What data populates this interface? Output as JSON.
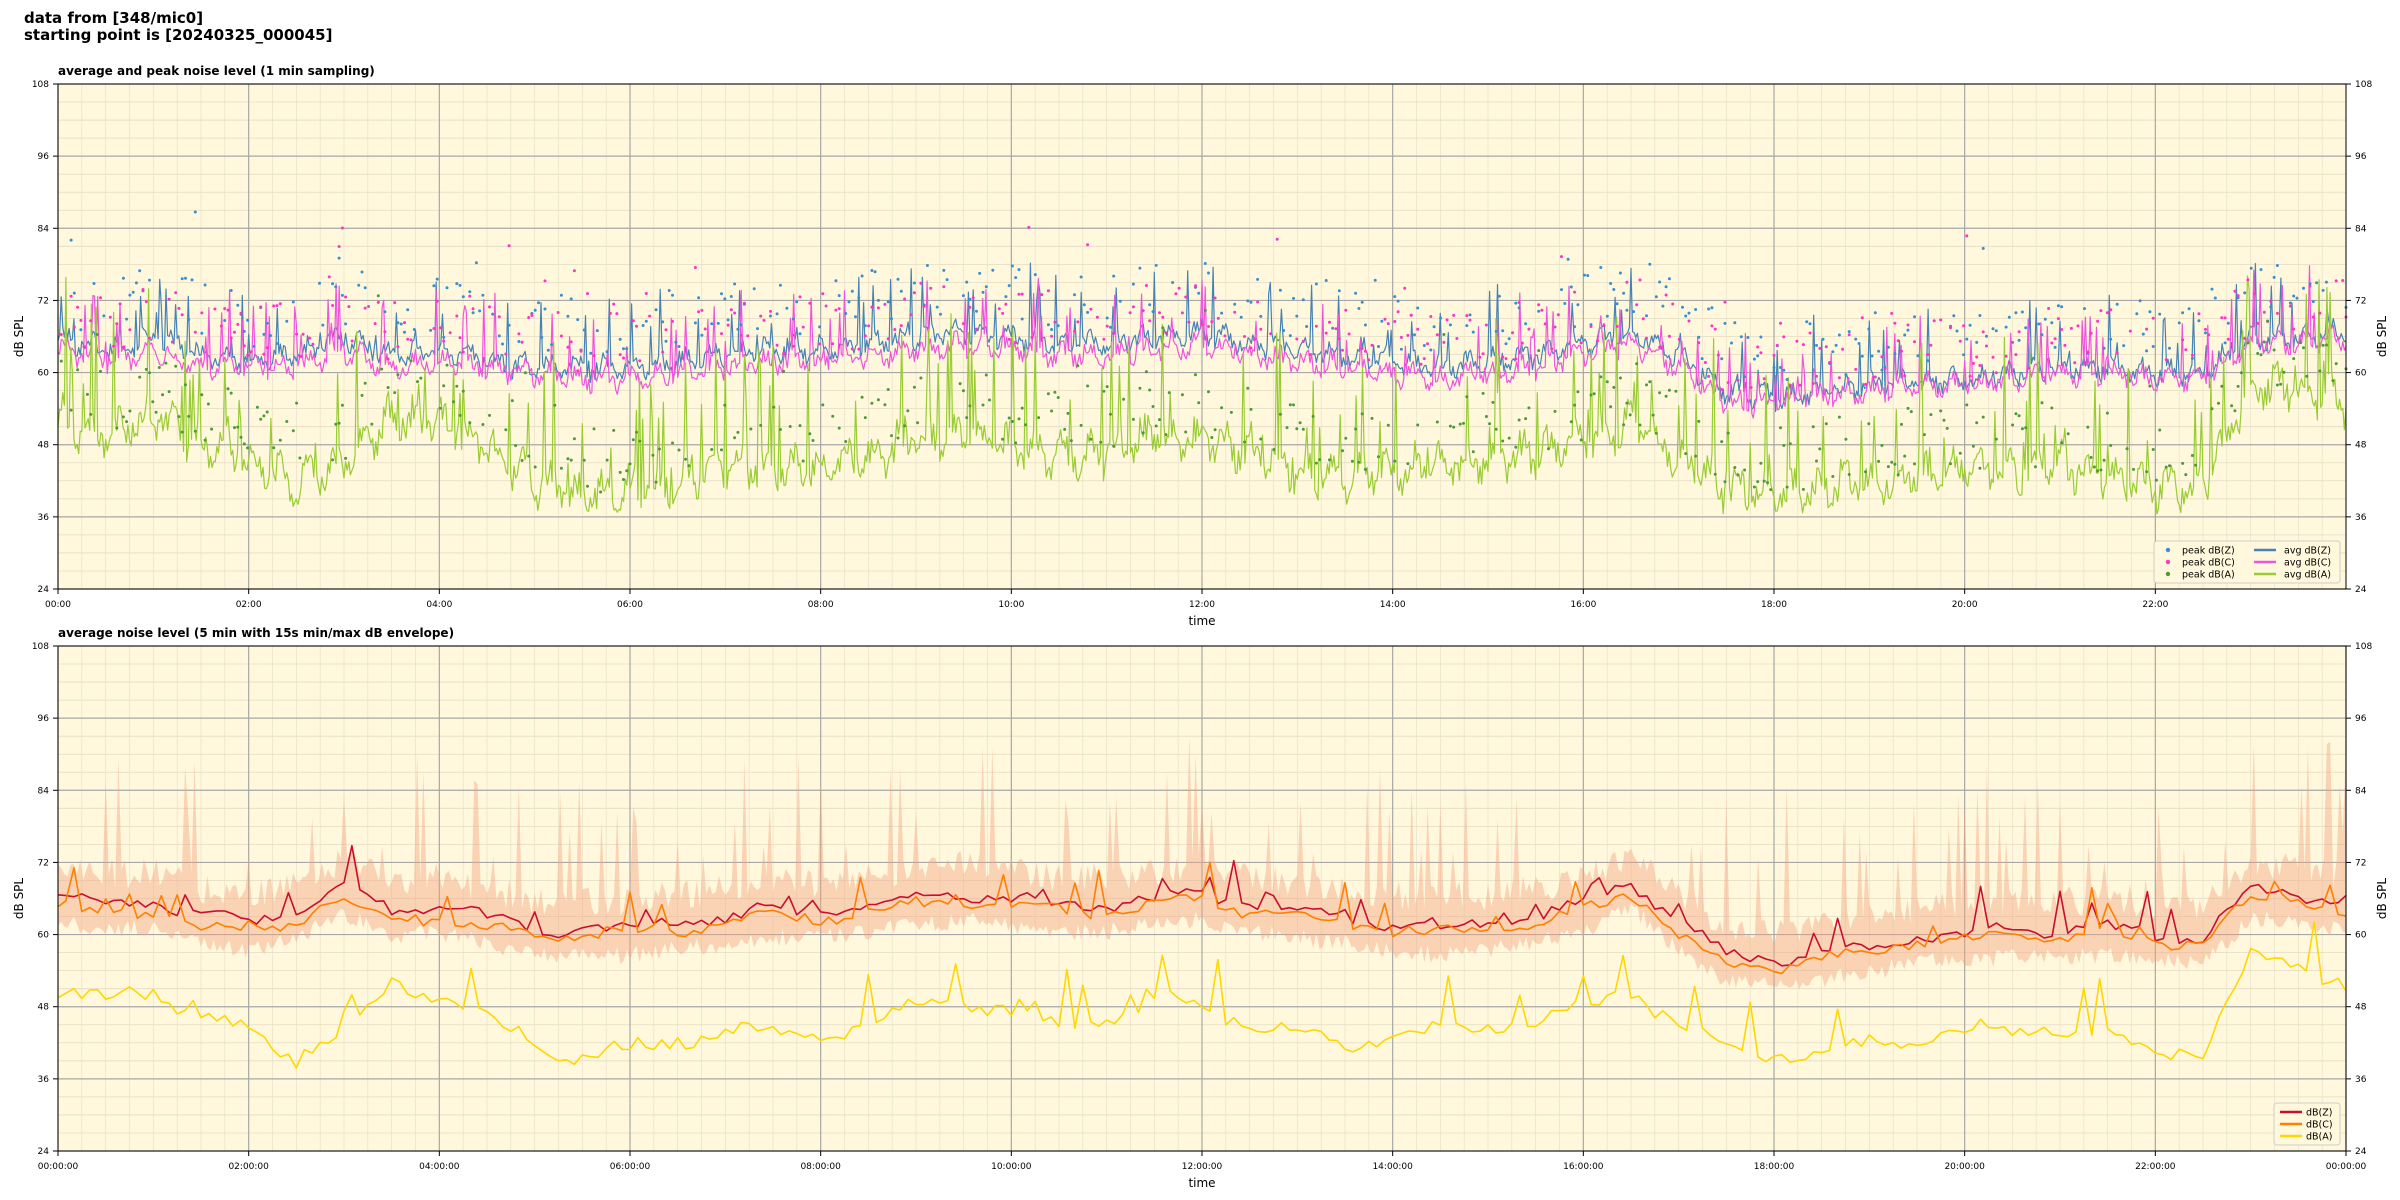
{
  "figure": {
    "title_line1": "data from [348/mic0]",
    "title_line2": "starting point is [20240325_000045]"
  },
  "colors": {
    "panel_bg": "#fff8dc",
    "avgZ": "#4682b4",
    "avgC": "#ee55dd",
    "avgA": "#99cc33",
    "peakZ": "#3a8fd0",
    "peakC": "#ff33cc",
    "peakA": "#4c9a3a",
    "dBZ": "#c8102e",
    "dBC": "#ff8000",
    "dBA": "#ffd700",
    "envelope": "#f4a582"
  },
  "chart_data": [
    {
      "type": "line",
      "title": "average and peak noise level (1 min sampling)",
      "xlabel": "time",
      "ylabel": "dB SPL",
      "ylabel_right": "dB SPL",
      "xlim_hours": [
        0,
        24
      ],
      "ylim": [
        24,
        108
      ],
      "yticks": [
        24,
        36,
        48,
        60,
        72,
        84,
        96,
        108
      ],
      "xtick_labels": [
        "00:00",
        "02:00",
        "04:00",
        "06:00",
        "08:00",
        "10:00",
        "12:00",
        "14:00",
        "16:00",
        "18:00",
        "20:00",
        "22:00"
      ],
      "grid": true,
      "legend_position": "lower-right",
      "x_hours": [
        0,
        0.5,
        1,
        1.5,
        2,
        2.5,
        3,
        3.5,
        4,
        4.5,
        5,
        5.5,
        6,
        6.5,
        7,
        7.5,
        8,
        8.5,
        9,
        9.5,
        10,
        10.5,
        11,
        11.5,
        12,
        12.5,
        13,
        13.5,
        14,
        14.5,
        15,
        15.5,
        16,
        16.5,
        17,
        17.5,
        18,
        18.5,
        19,
        19.5,
        20,
        20.5,
        21,
        21.5,
        22,
        22.5,
        23,
        23.5,
        24
      ],
      "legend": [
        {
          "label": "peak dB(Z)",
          "kind": "dot",
          "color_key": "peakZ"
        },
        {
          "label": "peak dB(C)",
          "kind": "dot",
          "color_key": "peakC"
        },
        {
          "label": "peak dB(A)",
          "kind": "dot",
          "color_key": "peakA"
        },
        {
          "label": "avg dB(Z)",
          "kind": "line",
          "color_key": "avgZ"
        },
        {
          "label": "avg dB(C)",
          "kind": "line",
          "color_key": "avgC"
        },
        {
          "label": "avg dB(A)",
          "kind": "line",
          "color_key": "avgA"
        }
      ],
      "series": [
        {
          "name": "avg dB(Z)",
          "color_key": "avgZ",
          "amp": 5,
          "values": [
            66,
            64,
            66,
            63,
            62,
            63,
            66,
            63,
            64,
            62,
            61,
            61,
            61,
            62,
            63,
            64,
            64,
            65,
            66,
            67,
            66,
            65,
            65,
            66,
            67,
            65,
            64,
            63,
            62,
            61,
            62,
            63,
            65,
            67,
            63,
            57,
            56,
            57,
            58,
            59,
            59,
            60,
            61,
            61,
            60,
            60,
            66,
            66,
            67
          ]
        },
        {
          "name": "avg dB(C)",
          "color_key": "avgC",
          "amp": 5,
          "values": [
            64,
            62,
            64,
            61,
            61,
            61,
            64,
            61,
            62,
            61,
            60,
            59,
            59,
            60,
            61,
            62,
            62,
            63,
            64,
            65,
            64,
            63,
            63,
            64,
            65,
            63,
            62,
            61,
            60,
            59,
            60,
            61,
            63,
            65,
            61,
            55,
            55,
            56,
            57,
            58,
            58,
            59,
            60,
            60,
            59,
            59,
            65,
            65,
            66
          ]
        },
        {
          "name": "avg dB(A)",
          "color_key": "avgA",
          "amp": 9,
          "values": [
            52,
            50,
            53,
            48,
            46,
            42,
            45,
            53,
            52,
            48,
            42,
            40,
            41,
            42,
            45,
            44,
            45,
            46,
            49,
            50,
            48,
            46,
            47,
            50,
            49,
            47,
            44,
            43,
            44,
            45,
            46,
            47,
            49,
            52,
            46,
            41,
            40,
            41,
            42,
            43,
            44,
            44,
            45,
            43,
            41,
            41,
            58,
            58,
            55
          ]
        },
        {
          "name": "peak dB(Z)",
          "color_key": "peakZ",
          "kind": "dots",
          "offset": 5,
          "amp": 10,
          "values": [
            66,
            64,
            66,
            63,
            62,
            63,
            66,
            63,
            64,
            62,
            61,
            61,
            61,
            62,
            63,
            64,
            64,
            65,
            66,
            67,
            66,
            65,
            65,
            66,
            67,
            65,
            64,
            63,
            62,
            61,
            62,
            63,
            65,
            67,
            63,
            57,
            56,
            57,
            58,
            59,
            59,
            60,
            61,
            61,
            60,
            60,
            66,
            66,
            67
          ]
        },
        {
          "name": "peak dB(C)",
          "color_key": "peakC",
          "kind": "dots",
          "offset": 4,
          "amp": 10,
          "values": [
            64,
            62,
            64,
            61,
            61,
            61,
            64,
            61,
            62,
            61,
            60,
            59,
            59,
            60,
            61,
            62,
            62,
            63,
            64,
            65,
            64,
            63,
            63,
            64,
            65,
            63,
            62,
            61,
            60,
            59,
            60,
            61,
            63,
            65,
            61,
            55,
            55,
            56,
            57,
            58,
            58,
            59,
            60,
            60,
            59,
            59,
            65,
            65,
            66
          ]
        },
        {
          "name": "peak dB(A)",
          "color_key": "peakA",
          "kind": "dots",
          "offset": 3,
          "amp": 11,
          "values": [
            52,
            50,
            53,
            48,
            46,
            42,
            45,
            53,
            52,
            48,
            42,
            40,
            41,
            42,
            45,
            44,
            45,
            46,
            49,
            50,
            48,
            46,
            47,
            50,
            49,
            47,
            44,
            43,
            44,
            45,
            46,
            47,
            49,
            52,
            46,
            41,
            40,
            41,
            42,
            43,
            44,
            44,
            45,
            43,
            41,
            41,
            58,
            58,
            55
          ]
        }
      ]
    },
    {
      "type": "line",
      "title": "average noise level (5 min with 15s min/max dB envelope)",
      "xlabel": "time",
      "ylabel": "dB SPL",
      "ylabel_right": "dB SPL",
      "xlim_hours": [
        0,
        24
      ],
      "ylim": [
        24,
        108
      ],
      "yticks": [
        24,
        36,
        48,
        60,
        72,
        84,
        96,
        108
      ],
      "xtick_labels": [
        "00:00:00",
        "02:00:00",
        "04:00:00",
        "06:00:00",
        "08:00:00",
        "10:00:00",
        "12:00:00",
        "14:00:00",
        "16:00:00",
        "18:00:00",
        "20:00:00",
        "22:00:00",
        "00:00:00"
      ],
      "grid": true,
      "legend_position": "lower-right",
      "x_hours": [
        0,
        0.5,
        1,
        1.5,
        2,
        2.5,
        3,
        3.5,
        4,
        4.5,
        5,
        5.5,
        6,
        6.5,
        7,
        7.5,
        8,
        8.5,
        9,
        9.5,
        10,
        10.5,
        11,
        11.5,
        12,
        12.5,
        13,
        13.5,
        14,
        14.5,
        15,
        15.5,
        16,
        16.5,
        17,
        17.5,
        18,
        18.5,
        19,
        19.5,
        20,
        20.5,
        21,
        21.5,
        22,
        22.5,
        23,
        23.5,
        24
      ],
      "legend": [
        {
          "label": "dB(Z)",
          "color_key": "dBZ"
        },
        {
          "label": "dB(C)",
          "color_key": "dBC"
        },
        {
          "label": "dB(A)",
          "color_key": "dBA"
        }
      ],
      "series": [
        {
          "name": "dB(Z)",
          "color_key": "dBZ",
          "amp": 3,
          "values": [
            67,
            65,
            66,
            63,
            62,
            64,
            68,
            64,
            65,
            63,
            61,
            61,
            61,
            62,
            63,
            64,
            64,
            65,
            66,
            67,
            66,
            65,
            65,
            66,
            67,
            65,
            64,
            63,
            62,
            61,
            62,
            63,
            65,
            69,
            62,
            57,
            56,
            57,
            58,
            60,
            60,
            61,
            61,
            61,
            60,
            60,
            67,
            67,
            65
          ]
        },
        {
          "name": "dB(C)",
          "color_key": "dBC",
          "amp": 3,
          "values": [
            65,
            63,
            64,
            61,
            61,
            62,
            66,
            62,
            63,
            61,
            60,
            60,
            60,
            61,
            62,
            63,
            63,
            64,
            65,
            66,
            65,
            64,
            64,
            65,
            66,
            64,
            63,
            62,
            61,
            60,
            61,
            62,
            64,
            67,
            60,
            55,
            55,
            56,
            57,
            59,
            59,
            60,
            60,
            60,
            59,
            59,
            66,
            66,
            64
          ]
        },
        {
          "name": "dB(A)",
          "color_key": "dBA",
          "amp": 4,
          "values": [
            50,
            49,
            51,
            46,
            44,
            40,
            44,
            52,
            50,
            46,
            42,
            40,
            41,
            42,
            45,
            43,
            44,
            45,
            48,
            49,
            47,
            45,
            46,
            49,
            48,
            46,
            43,
            42,
            43,
            44,
            45,
            46,
            48,
            51,
            45,
            41,
            40,
            41,
            42,
            43,
            44,
            44,
            45,
            43,
            41,
            41,
            56,
            56,
            51
          ]
        }
      ]
    }
  ]
}
